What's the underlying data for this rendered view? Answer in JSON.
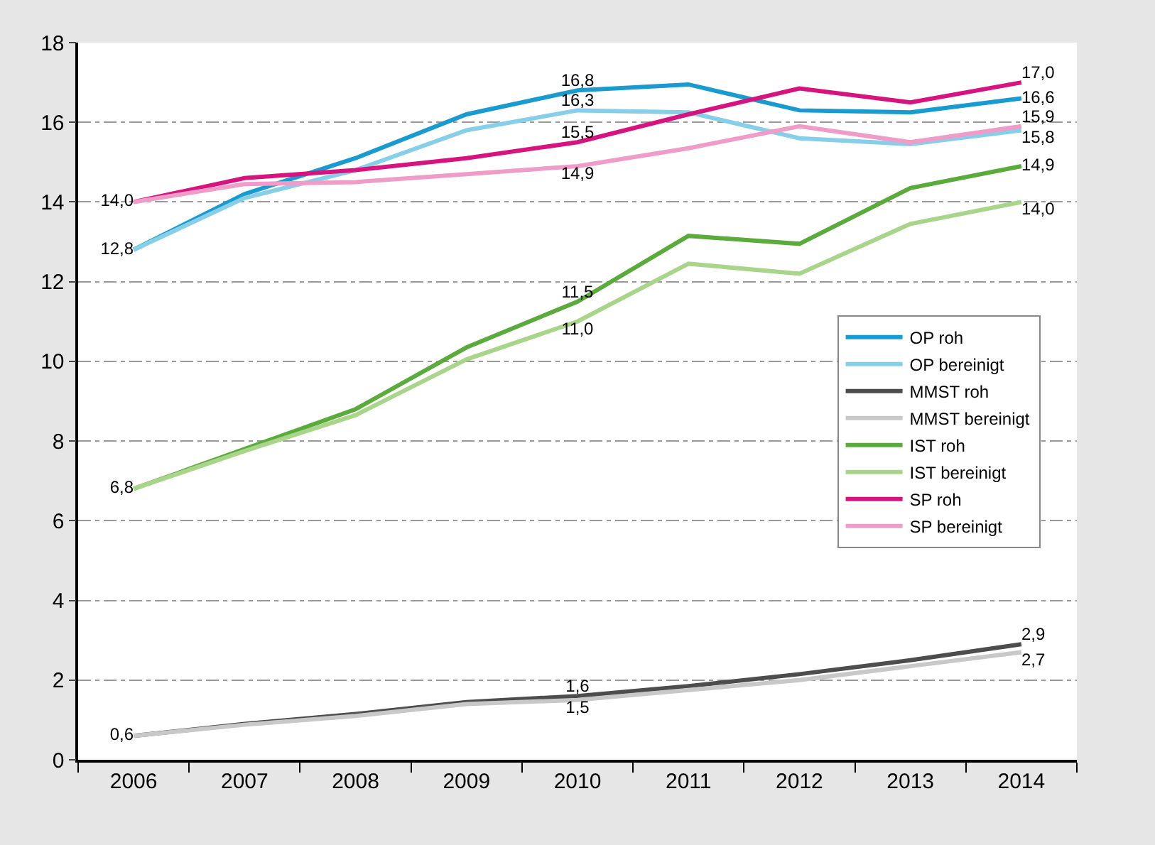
{
  "chart_data": {
    "type": "line",
    "categories": [
      "2006",
      "2007",
      "2008",
      "2009",
      "2010",
      "2011",
      "2012",
      "2013",
      "2014"
    ],
    "ylim": [
      0,
      18
    ],
    "yticks": [
      0,
      2,
      4,
      6,
      8,
      10,
      12,
      14,
      16,
      18
    ],
    "grid": "y",
    "legend": "right",
    "marker": "none",
    "line_style": "solid",
    "series": [
      {
        "name": "OP roh",
        "color": "#1a9bcf",
        "values": [
          12.8,
          14.2,
          15.1,
          16.2,
          16.8,
          16.95,
          16.3,
          16.25,
          16.6
        ],
        "value_labels": [
          "12,8",
          null,
          null,
          null,
          "16,8",
          null,
          null,
          null,
          "16,6"
        ]
      },
      {
        "name": "OP bereinigt",
        "color": "#87cfe8",
        "values": [
          12.8,
          14.1,
          14.8,
          15.8,
          16.3,
          16.25,
          15.6,
          15.45,
          15.8
        ],
        "value_labels": [
          null,
          null,
          null,
          null,
          "16,3",
          null,
          null,
          null,
          "15,8"
        ]
      },
      {
        "name": "MMST roh",
        "color": "#4d4d4d",
        "values": [
          0.6,
          0.9,
          1.15,
          1.45,
          1.6,
          1.85,
          2.15,
          2.5,
          2.9
        ],
        "value_labels": [
          "0,6",
          null,
          null,
          null,
          "1,6",
          null,
          null,
          null,
          "2,9"
        ]
      },
      {
        "name": "MMST bereinigt",
        "color": "#c8c8c8",
        "values": [
          0.6,
          0.88,
          1.1,
          1.4,
          1.5,
          1.75,
          2.0,
          2.35,
          2.7
        ],
        "value_labels": [
          null,
          null,
          null,
          null,
          "1,5",
          null,
          null,
          null,
          "2,7"
        ]
      },
      {
        "name": "IST roh",
        "color": "#5aab3c",
        "values": [
          6.8,
          7.8,
          8.8,
          10.35,
          11.5,
          13.15,
          12.95,
          14.35,
          14.9
        ],
        "value_labels": [
          "6,8",
          null,
          null,
          null,
          "11,5",
          null,
          null,
          null,
          "14,9"
        ]
      },
      {
        "name": "IST bereinigt",
        "color": "#a8d58a",
        "values": [
          6.8,
          7.75,
          8.65,
          10.05,
          11.0,
          12.45,
          12.2,
          13.45,
          14.0
        ],
        "value_labels": [
          null,
          null,
          null,
          null,
          "11,0",
          null,
          null,
          null,
          "14,0"
        ]
      },
      {
        "name": "SP roh",
        "color": "#d6137e",
        "values": [
          14.0,
          14.6,
          14.8,
          15.1,
          15.5,
          16.2,
          16.85,
          16.5,
          17.0
        ],
        "value_labels": [
          "14,0",
          null,
          null,
          null,
          "15,5",
          null,
          null,
          null,
          "17,0"
        ]
      },
      {
        "name": "SP bereinigt",
        "color": "#f09cc8",
        "values": [
          14.0,
          14.45,
          14.5,
          14.7,
          14.9,
          15.35,
          15.9,
          15.5,
          15.9
        ],
        "value_labels": [
          null,
          null,
          null,
          null,
          "14,9",
          null,
          null,
          null,
          "15,9"
        ]
      }
    ]
  }
}
